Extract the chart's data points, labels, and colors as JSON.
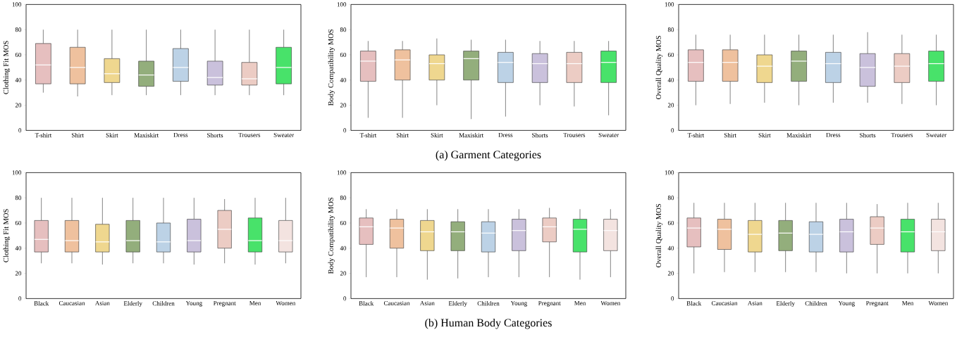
{
  "chart_data": [
    {
      "type": "box",
      "ylabel": "Clothing Fit MOS",
      "categories": [
        "T-shirt",
        "Shirt",
        "Skirt",
        "Maxiskirt",
        "Dress",
        "Shorts",
        "Trousers",
        "Sweater"
      ],
      "colors": [
        "#e6bfbf",
        "#efc19e",
        "#efd78f",
        "#93ae7c",
        "#bcd2e6",
        "#cac1dc",
        "#ecccc4",
        "#48e26a"
      ],
      "boxes": [
        {
          "low": 30,
          "q1": 37,
          "median": 52,
          "q3": 69,
          "high": 80
        },
        {
          "low": 27,
          "q1": 37,
          "median": 50,
          "q3": 66,
          "high": 80
        },
        {
          "low": 28,
          "q1": 38,
          "median": 45,
          "q3": 57,
          "high": 80
        },
        {
          "low": 28,
          "q1": 35,
          "median": 44,
          "q3": 55,
          "high": 80
        },
        {
          "low": 28,
          "q1": 39,
          "median": 50,
          "q3": 65,
          "high": 80
        },
        {
          "low": 28,
          "q1": 36,
          "median": 42,
          "q3": 55,
          "high": 80
        },
        {
          "low": 28,
          "q1": 36,
          "median": 41,
          "q3": 54,
          "high": 80
        },
        {
          "low": 28,
          "q1": 37,
          "median": 50,
          "q3": 66,
          "high": 80
        }
      ],
      "ylim": [
        0,
        100
      ],
      "yticks": [
        0,
        20,
        40,
        60,
        80,
        100
      ]
    },
    {
      "type": "box",
      "ylabel": "Body Compatibility MOS",
      "categories": [
        "T-shirt",
        "Shirt",
        "Skirt",
        "Maxiskirt",
        "Dress",
        "Shorts",
        "Trousers",
        "Sweater"
      ],
      "colors": [
        "#e6bfbf",
        "#efc19e",
        "#efd78f",
        "#93ae7c",
        "#bcd2e6",
        "#cac1dc",
        "#ecccc4",
        "#48e26a"
      ],
      "boxes": [
        {
          "low": 10,
          "q1": 39,
          "median": 55,
          "q3": 63,
          "high": 71
        },
        {
          "low": 10,
          "q1": 40,
          "median": 56,
          "q3": 64,
          "high": 71
        },
        {
          "low": 20,
          "q1": 40,
          "median": 53,
          "q3": 60,
          "high": 73
        },
        {
          "low": 9,
          "q1": 40,
          "median": 57,
          "q3": 63,
          "high": 72
        },
        {
          "low": 11,
          "q1": 38,
          "median": 54,
          "q3": 62,
          "high": 72
        },
        {
          "low": 20,
          "q1": 38,
          "median": 53,
          "q3": 61,
          "high": 71
        },
        {
          "low": 19,
          "q1": 38,
          "median": 53,
          "q3": 62,
          "high": 71
        },
        {
          "low": 12,
          "q1": 38,
          "median": 54,
          "q3": 63,
          "high": 71
        }
      ],
      "ylim": [
        0,
        100
      ],
      "yticks": [
        0,
        20,
        40,
        60,
        80,
        100
      ],
      "annotations": [
        "(a) Garment Categories"
      ]
    },
    {
      "type": "box",
      "ylabel": "Overall Quality MOS",
      "categories": [
        "T-shirt",
        "Shirt",
        "Skirt",
        "Maxiskirt",
        "Dress",
        "Shorts",
        "Trousers",
        "Sweater"
      ],
      "colors": [
        "#e6bfbf",
        "#efc19e",
        "#efd78f",
        "#93ae7c",
        "#bcd2e6",
        "#cac1dc",
        "#ecccc4",
        "#48e26a"
      ],
      "boxes": [
        {
          "low": 20,
          "q1": 39,
          "median": 54,
          "q3": 64,
          "high": 76
        },
        {
          "low": 21,
          "q1": 39,
          "median": 54,
          "q3": 64,
          "high": 76
        },
        {
          "low": 22,
          "q1": 38,
          "median": 51,
          "q3": 60,
          "high": 76
        },
        {
          "low": 20,
          "q1": 39,
          "median": 55,
          "q3": 63,
          "high": 76
        },
        {
          "low": 22,
          "q1": 38,
          "median": 53,
          "q3": 62,
          "high": 76
        },
        {
          "low": 22,
          "q1": 35,
          "median": 50,
          "q3": 61,
          "high": 78
        },
        {
          "low": 21,
          "q1": 38,
          "median": 51,
          "q3": 61,
          "high": 76
        },
        {
          "low": 20,
          "q1": 39,
          "median": 53,
          "q3": 63,
          "high": 76
        }
      ],
      "ylim": [
        0,
        100
      ],
      "yticks": [
        0,
        20,
        40,
        60,
        80,
        100
      ]
    },
    {
      "type": "box",
      "ylabel": "Clothing Fit MOS",
      "categories": [
        "Black",
        "Caucasian",
        "Asian",
        "Elderly",
        "Children",
        "Young",
        "Pregnant",
        "Men",
        "Women"
      ],
      "colors": [
        "#e6bfbf",
        "#efc19e",
        "#efd78f",
        "#93ae7c",
        "#bcd2e6",
        "#cac1dc",
        "#ecccc4",
        "#48e26a",
        "#f3e3e0"
      ],
      "boxes": [
        {
          "low": 28,
          "q1": 37,
          "median": 47,
          "q3": 62,
          "high": 80
        },
        {
          "low": 28,
          "q1": 37,
          "median": 46,
          "q3": 62,
          "high": 80
        },
        {
          "low": 27,
          "q1": 37,
          "median": 45,
          "q3": 59,
          "high": 80
        },
        {
          "low": 28,
          "q1": 37,
          "median": 46,
          "q3": 62,
          "high": 80
        },
        {
          "low": 28,
          "q1": 37,
          "median": 45,
          "q3": 60,
          "high": 80
        },
        {
          "low": 27,
          "q1": 37,
          "median": 46,
          "q3": 63,
          "high": 80
        },
        {
          "low": 28,
          "q1": 40,
          "median": 55,
          "q3": 70,
          "high": 79
        },
        {
          "low": 27,
          "q1": 37,
          "median": 46,
          "q3": 64,
          "high": 80
        },
        {
          "low": 28,
          "q1": 37,
          "median": 46,
          "q3": 62,
          "high": 80
        }
      ],
      "ylim": [
        0,
        100
      ],
      "yticks": [
        0,
        20,
        40,
        60,
        80,
        100
      ]
    },
    {
      "type": "box",
      "ylabel": "Body Compatibility MOS",
      "categories": [
        "Black",
        "Caucasian",
        "Asian",
        "Elderly",
        "Children",
        "Young",
        "Pregnant",
        "Men",
        "Women"
      ],
      "colors": [
        "#e6bfbf",
        "#efc19e",
        "#efd78f",
        "#93ae7c",
        "#bcd2e6",
        "#cac1dc",
        "#ecccc4",
        "#48e26a",
        "#f3e3e0"
      ],
      "boxes": [
        {
          "low": 17,
          "q1": 43,
          "median": 57,
          "q3": 64,
          "high": 71
        },
        {
          "low": 17,
          "q1": 40,
          "median": 56,
          "q3": 63,
          "high": 71
        },
        {
          "low": 15,
          "q1": 38,
          "median": 53,
          "q3": 62,
          "high": 71
        },
        {
          "low": 16,
          "q1": 38,
          "median": 53,
          "q3": 61,
          "high": 71
        },
        {
          "low": 17,
          "q1": 37,
          "median": 52,
          "q3": 61,
          "high": 71
        },
        {
          "low": 17,
          "q1": 38,
          "median": 54,
          "q3": 63,
          "high": 71
        },
        {
          "low": 17,
          "q1": 45,
          "median": 57,
          "q3": 64,
          "high": 72
        },
        {
          "low": 15,
          "q1": 37,
          "median": 55,
          "q3": 63,
          "high": 71
        },
        {
          "low": 17,
          "q1": 38,
          "median": 54,
          "q3": 63,
          "high": 71
        }
      ],
      "ylim": [
        0,
        100
      ],
      "yticks": [
        0,
        20,
        40,
        60,
        80,
        100
      ],
      "annotations": [
        "(b) Human Body Categories"
      ]
    },
    {
      "type": "box",
      "ylabel": "Overall Quality MOS",
      "categories": [
        "Black",
        "Caucasian",
        "Asian",
        "Elderly",
        "Children",
        "Young",
        "Pregnant",
        "Men",
        "Women"
      ],
      "colors": [
        "#e6bfbf",
        "#efc19e",
        "#efd78f",
        "#93ae7c",
        "#bcd2e6",
        "#cac1dc",
        "#ecccc4",
        "#48e26a",
        "#f3e3e0"
      ],
      "boxes": [
        {
          "low": 20,
          "q1": 41,
          "median": 56,
          "q3": 64,
          "high": 76
        },
        {
          "low": 21,
          "q1": 39,
          "median": 55,
          "q3": 63,
          "high": 76
        },
        {
          "low": 21,
          "q1": 37,
          "median": 51,
          "q3": 62,
          "high": 76
        },
        {
          "low": 21,
          "q1": 38,
          "median": 52,
          "q3": 62,
          "high": 76
        },
        {
          "low": 21,
          "q1": 37,
          "median": 51,
          "q3": 61,
          "high": 76
        },
        {
          "low": 20,
          "q1": 37,
          "median": 53,
          "q3": 63,
          "high": 76
        },
        {
          "low": 20,
          "q1": 43,
          "median": 56,
          "q3": 65,
          "high": 75
        },
        {
          "low": 20,
          "q1": 37,
          "median": 53,
          "q3": 63,
          "high": 76
        },
        {
          "low": 20,
          "q1": 38,
          "median": 53,
          "q3": 63,
          "high": 76
        }
      ],
      "ylim": [
        0,
        100
      ],
      "yticks": [
        0,
        20,
        40,
        60,
        80,
        100
      ]
    }
  ]
}
